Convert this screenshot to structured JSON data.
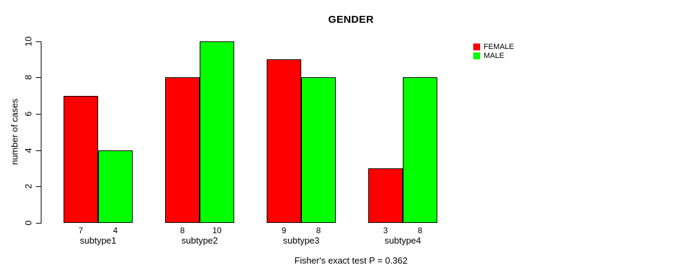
{
  "chart_data": {
    "type": "bar",
    "grouped": true,
    "title": "GENDER",
    "xlabel": "",
    "ylabel": "number of cases",
    "categories": [
      "subtype1",
      "subtype2",
      "subtype3",
      "subtype4"
    ],
    "series": [
      {
        "name": "FEMALE",
        "color": "#ff0000",
        "values": [
          7,
          8,
          9,
          3
        ]
      },
      {
        "name": "MALE",
        "color": "#00ff00",
        "values": [
          4,
          10,
          8,
          8
        ]
      }
    ],
    "bar_value_labels": [
      [
        "7",
        "4"
      ],
      [
        "8",
        "10"
      ],
      [
        "9",
        "8"
      ],
      [
        "3",
        "8"
      ]
    ],
    "yticks": [
      0,
      2,
      4,
      6,
      8,
      10
    ],
    "ylim": [
      0,
      10
    ],
    "grid": false,
    "legend_position": "top-right",
    "annotations": [
      "Fisher's exact test P = 0.362"
    ]
  },
  "legend": {
    "items": [
      {
        "label": "FEMALE",
        "color": "#ff0000"
      },
      {
        "label": "MALE",
        "color": "#00ff00"
      }
    ]
  }
}
